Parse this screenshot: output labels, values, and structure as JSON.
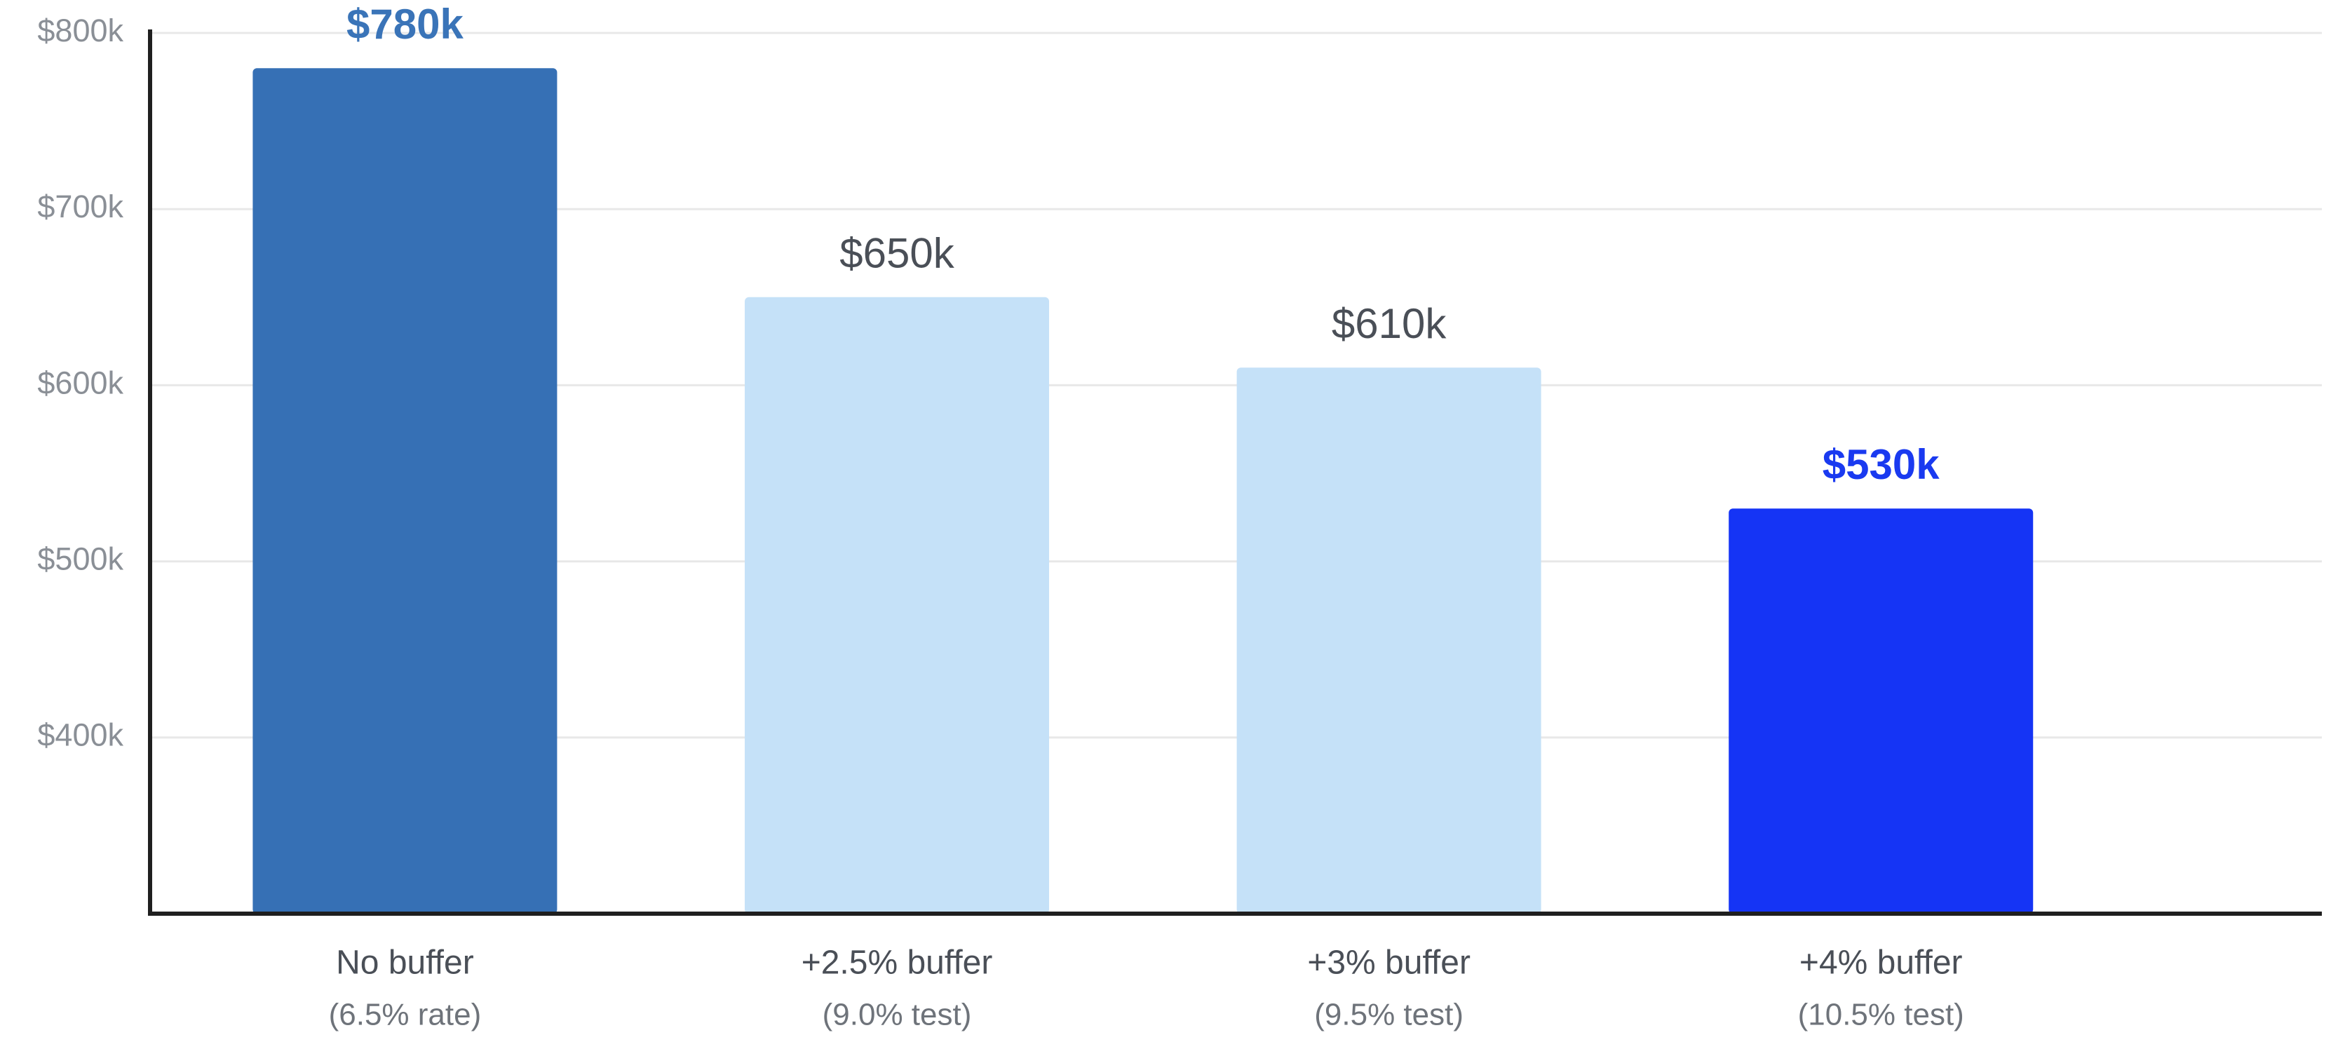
{
  "chart_data": {
    "type": "bar",
    "categories": [
      "No buffer",
      "+2.5% buffer",
      "+3% buffer",
      "+4% buffer"
    ],
    "category_notes": [
      "(6.5% rate)",
      "(9.0% test)",
      "(9.5% test)",
      "(10.5% test)"
    ],
    "values": [
      780000,
      650000,
      610000,
      530000
    ],
    "value_labels": [
      "$780k",
      "$650k",
      "$610k",
      "$530k"
    ],
    "colors": [
      "#3670b5",
      "#c5e1f8",
      "#c5e1f8",
      "#1534f5"
    ],
    "label_colors": [
      "#3a74b8",
      "#4a4f57",
      "#4a4f57",
      "#1a3af0"
    ],
    "label_bold": [
      true,
      false,
      false,
      true
    ],
    "ylim": [
      300000,
      800000
    ],
    "yticks": [
      {
        "value": 400000,
        "label": "$400k"
      },
      {
        "value": 500000,
        "label": "$500k"
      },
      {
        "value": 600000,
        "label": "$600k"
      },
      {
        "value": 700000,
        "label": "$700k"
      },
      {
        "value": 800000,
        "label": "$800k"
      }
    ],
    "grid": true
  }
}
